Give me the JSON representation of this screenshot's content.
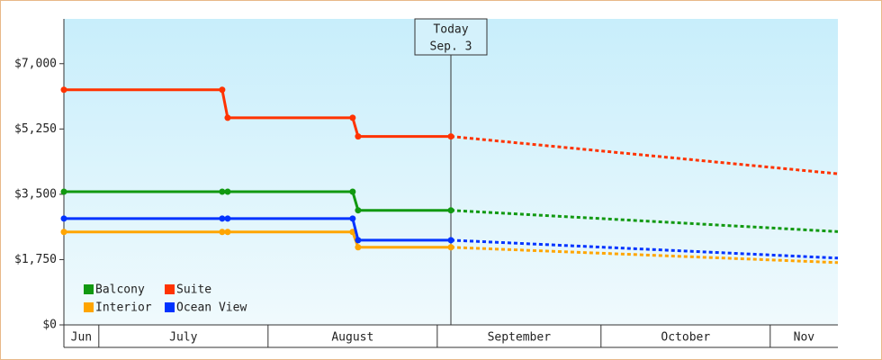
{
  "chart_data": {
    "type": "line",
    "xlim": [
      23.6,
      165.4
    ],
    "xticks": [
      30,
      61,
      92,
      122,
      153
    ],
    "months": [
      "Jun",
      "July",
      "August",
      "September",
      "October",
      "Nov"
    ],
    "ylim": [
      0,
      8200
    ],
    "yticks": [
      {
        "value": 0,
        "label": "$0"
      },
      {
        "value": 1750,
        "label": "$1,750"
      },
      {
        "value": 3500,
        "label": "$3,500"
      },
      {
        "value": 5250,
        "label": "$5,250"
      },
      {
        "value": 7000,
        "label": "$7,000"
      }
    ],
    "annotation": {
      "x": 94.5,
      "lines": [
        "Today",
        "Sep. 3"
      ]
    },
    "legend": "bottom-left",
    "series": [
      {
        "name": "Balcony",
        "color": "#119911",
        "x": [
          23.6,
          52.6,
          53.6,
          76.5,
          77.5,
          94.5
        ],
        "values": [
          3570,
          3570,
          3570,
          3570,
          3070,
          3070
        ],
        "forecast_x": [
          94.5,
          165.4
        ],
        "forecast_values": [
          3070,
          2500
        ]
      },
      {
        "name": "Suite",
        "color": "#ff3300",
        "x": [
          23.6,
          52.6,
          53.6,
          76.5,
          77.5,
          94.5
        ],
        "values": [
          6300,
          6300,
          5550,
          5550,
          5050,
          5050
        ],
        "forecast_x": [
          94.5,
          165.4
        ],
        "forecast_values": [
          5050,
          4050
        ]
      },
      {
        "name": "Interior",
        "color": "#ffa500",
        "x": [
          23.6,
          52.6,
          53.6,
          76.5,
          77.5,
          94.5
        ],
        "values": [
          2490,
          2490,
          2490,
          2490,
          2080,
          2080
        ],
        "forecast_x": [
          94.5,
          165.4
        ],
        "forecast_values": [
          2080,
          1670
        ]
      },
      {
        "name": "Ocean View",
        "color": "#0033ff",
        "x": [
          23.6,
          52.6,
          53.6,
          76.5,
          77.5,
          94.5
        ],
        "values": [
          2850,
          2850,
          2850,
          2850,
          2270,
          2270
        ],
        "forecast_x": [
          94.5,
          165.4
        ],
        "forecast_values": [
          2270,
          1790
        ]
      }
    ]
  }
}
